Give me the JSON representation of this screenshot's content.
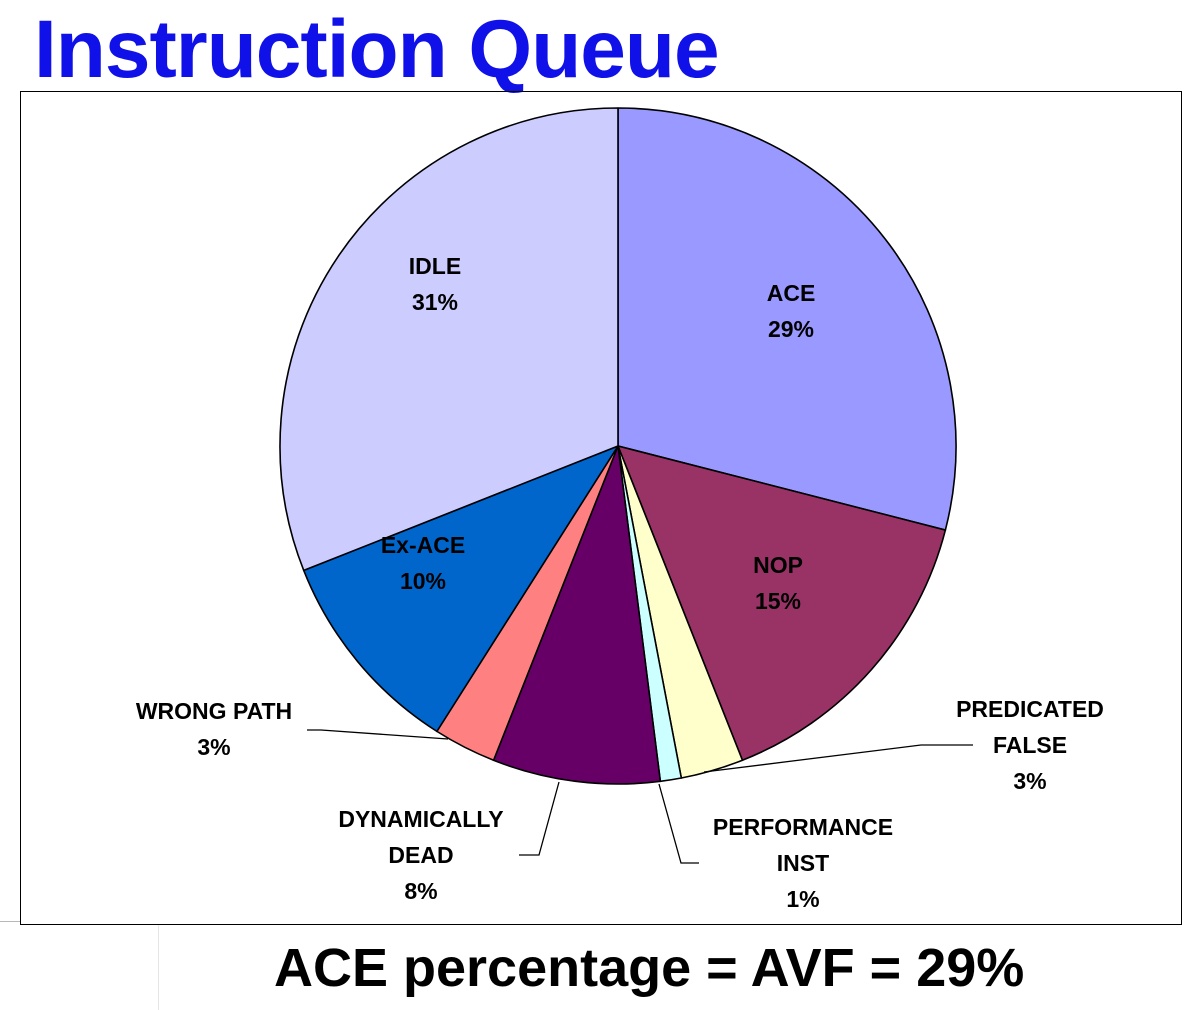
{
  "slide": {
    "title": "Instruction Queue",
    "title_color": "#1010e8",
    "footer": "ACE percentage = AVF = 29%"
  },
  "chart_data": {
    "type": "pie",
    "start": "12 o'clock",
    "direction": "clockwise",
    "legend": "none",
    "slices": [
      {
        "label": "ACE",
        "value": 29,
        "value_label": "29%",
        "color": "#9999ff"
      },
      {
        "label": "NOP",
        "value": 15,
        "value_label": "15%",
        "color": "#993366"
      },
      {
        "label": "PREDICATED FALSE",
        "label_lines": [
          "PREDICATED",
          "FALSE"
        ],
        "value": 3,
        "value_label": "3%",
        "color": "#ffffcc"
      },
      {
        "label": "PERFORMANCE INST",
        "label_lines": [
          "PERFORMANCE",
          "INST"
        ],
        "value": 1,
        "value_label": "1%",
        "color": "#ccffff"
      },
      {
        "label": "DYNAMICALLY DEAD",
        "label_lines": [
          "DYNAMICALLY",
          "DEAD"
        ],
        "value": 8,
        "value_label": "8%",
        "color": "#660066"
      },
      {
        "label": "WRONG PATH",
        "value": 3,
        "value_label": "3%",
        "color": "#ff8080"
      },
      {
        "label": "Ex-ACE",
        "value": 10,
        "value_label": "10%",
        "color": "#0066cc"
      },
      {
        "label": "IDLE",
        "value": 31,
        "value_label": "31%",
        "color": "#ccccff"
      }
    ]
  }
}
